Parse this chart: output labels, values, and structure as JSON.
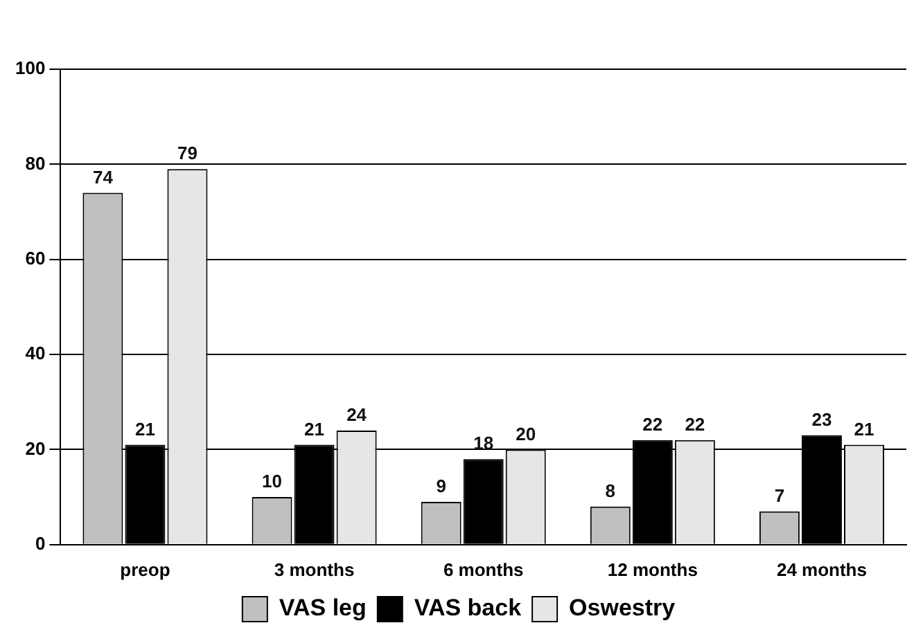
{
  "chart_data": {
    "type": "bar",
    "categories": [
      "preop",
      "3 months",
      "6 months",
      "12 months",
      "24 months"
    ],
    "series": [
      {
        "name": "VAS leg",
        "color": "#c0c0c0",
        "values": [
          74,
          10,
          9,
          8,
          7
        ]
      },
      {
        "name": "VAS back",
        "color": "#000000",
        "values": [
          21,
          21,
          18,
          22,
          23
        ]
      },
      {
        "name": "Oswestry",
        "color": "#e6e6e6",
        "values": [
          79,
          24,
          20,
          22,
          21
        ]
      }
    ],
    "ylim": [
      0,
      100
    ],
    "yticks": [
      0,
      20,
      40,
      60,
      80,
      100
    ],
    "grid": "y",
    "legend": "bottom",
    "data_labels": true
  }
}
